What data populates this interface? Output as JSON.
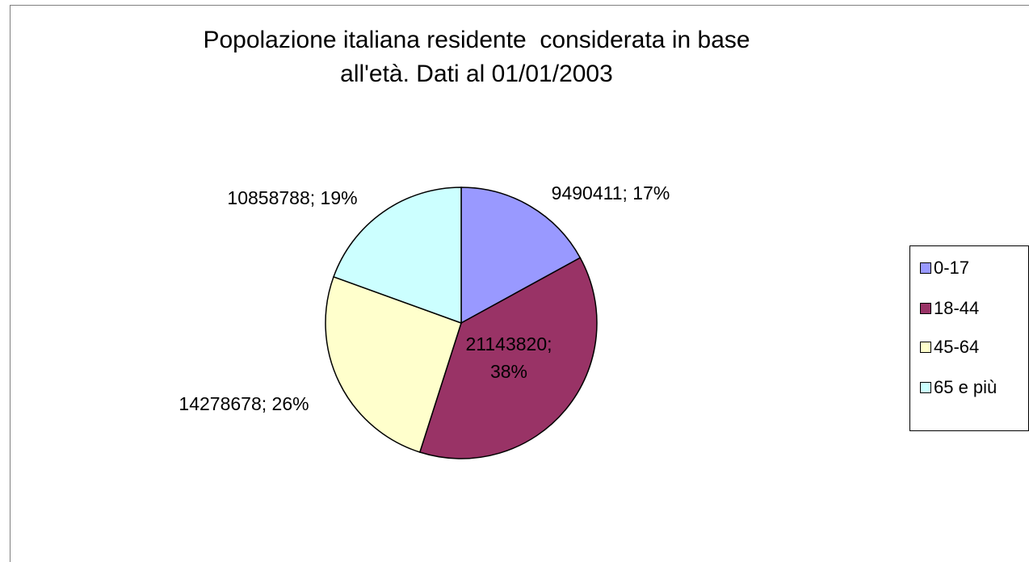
{
  "chart_data": {
    "type": "pie",
    "title_lines": [
      "Popolazione italiana residente  considerata in base",
      "all'età. Dati al 01/01/2003"
    ],
    "categories": [
      "0-17",
      "18-44",
      "45-64",
      "65 e più"
    ],
    "values": [
      9490411,
      21143820,
      14278678,
      10858788
    ],
    "data_labels": [
      [
        "9490411; 17%"
      ],
      [
        "21143820;",
        "38%"
      ],
      [
        "14278678; 26%"
      ],
      [
        "10858788; 19%"
      ]
    ],
    "colors": [
      "#9999ff",
      "#993366",
      "#ffffcc",
      "#ccffff"
    ],
    "legend_position": "right"
  }
}
